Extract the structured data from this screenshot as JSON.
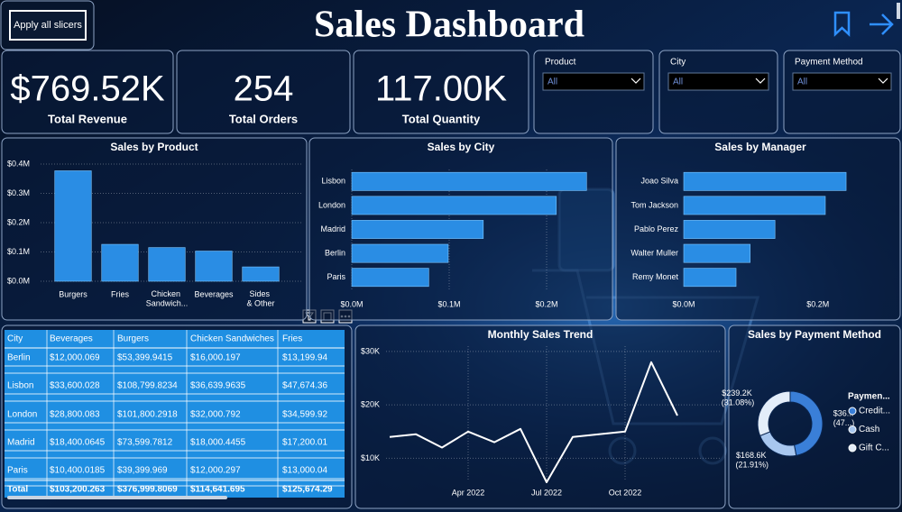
{
  "header": {
    "button": "Apply all slicers",
    "title": "Sales Dashboard"
  },
  "kpis": [
    {
      "value": "$769.52K",
      "label": "Total Revenue"
    },
    {
      "value": "254",
      "label": "Total Orders"
    },
    {
      "value": "117.00K",
      "label": "Total Quantity"
    }
  ],
  "slicers": [
    {
      "label": "Product",
      "selected": "All"
    },
    {
      "label": "City",
      "selected": "All"
    },
    {
      "label": "Payment Method",
      "selected": "All"
    }
  ],
  "chart_data": [
    {
      "type": "bar",
      "title": "Sales by Product",
      "categories": [
        "Burgers",
        "Fries",
        "Chicken Sandwich...",
        "Beverages",
        "Sides & Other"
      ],
      "values": [
        0.377,
        0.126,
        0.115,
        0.103,
        0.049
      ],
      "color": "#2a8de4",
      "ylim": [
        0,
        0.4
      ],
      "yticks": [
        {
          "value": 0,
          "label": "$0.0M"
        },
        {
          "value": 0.1,
          "label": "$0.1M"
        },
        {
          "value": 0.2,
          "label": "$0.2M"
        },
        {
          "value": 0.3,
          "label": "$0.3M"
        },
        {
          "value": 0.4,
          "label": "$0.4M"
        }
      ],
      "grid": true
    },
    {
      "type": "hbar",
      "title": "Sales by City",
      "categories": [
        "Lisbon",
        "London",
        "Madrid",
        "Berlin",
        "Paris"
      ],
      "values": [
        0.241,
        0.21,
        0.135,
        0.099,
        0.079
      ],
      "color": "#2a8de4",
      "xlim": [
        0,
        0.25
      ],
      "xticks": [
        {
          "value": 0,
          "label": "$0.0M"
        },
        {
          "value": 0.1,
          "label": "$0.1M"
        },
        {
          "value": 0.2,
          "label": "$0.2M"
        }
      ],
      "grid": true
    },
    {
      "type": "hbar",
      "title": "Sales by Manager",
      "categories": [
        "Joao Silva",
        "Tom Jackson",
        "Pablo Perez",
        "Walter Muller",
        "Remy Monet"
      ],
      "values": [
        0.242,
        0.211,
        0.136,
        0.099,
        0.078
      ],
      "color": "#2a8de4",
      "xlim": [
        0,
        0.25
      ],
      "xticks": [
        {
          "value": 0,
          "label": "$0.0M"
        },
        {
          "value": 0.2,
          "label": "$0.2M"
        }
      ],
      "grid": false
    },
    {
      "type": "line",
      "title": "Monthly Sales Trend",
      "x": [
        "Jan 2022",
        "Feb 2022",
        "Mar 2022",
        "Apr 2022",
        "May 2022",
        "Jun 2022",
        "Jul 2022",
        "Aug 2022",
        "Sep 2022",
        "Oct 2022",
        "Nov 2022",
        "Dec 2022"
      ],
      "values": [
        14,
        14.5,
        12,
        15,
        13,
        15.5,
        5.5,
        14,
        14.5,
        15,
        28,
        18
      ],
      "color": "#ffffff",
      "ylim": [
        5,
        31
      ],
      "yticks": [
        {
          "value": 10,
          "label": "$10K"
        },
        {
          "value": 20,
          "label": "$20K"
        },
        {
          "value": 30,
          "label": "$30K"
        }
      ],
      "xticks": [
        "Apr 2022",
        "Jul 2022",
        "Oct 2022"
      ],
      "grid": true
    },
    {
      "type": "donut",
      "title": "Sales by Payment Method",
      "legend_title": "Paymen...",
      "categories": [
        "Credit...",
        "Cash",
        "Gift C..."
      ],
      "values": [
        361.7,
        168.6,
        239.2
      ],
      "value_labels": [
        "$36... (47...)",
        "$168.6K (21.91%)",
        "$239.2K (31.08%)"
      ],
      "colors": [
        "#3a7fd8",
        "#a8c7ef",
        "#e3edf9"
      ]
    }
  ],
  "table": {
    "columns": [
      "City",
      "Beverages",
      "Burgers",
      "Chicken Sandwiches",
      "Fries"
    ],
    "rows": [
      [
        "Berlin",
        "$12,000.069",
        "$53,399.9415",
        "$16,000.197",
        "$13,199.94"
      ],
      [
        "Lisbon",
        "$33,600.028",
        "$108,799.8234",
        "$36,639.9635",
        "$47,674.36"
      ],
      [
        "London",
        "$28,800.083",
        "$101,800.2918",
        "$32,000.792",
        "$34,599.92"
      ],
      [
        "Madrid",
        "$18,400.0645",
        "$73,599.7812",
        "$18,000.4455",
        "$17,200.01"
      ],
      [
        "Paris",
        "$10,400.0185",
        "$39,399.969",
        "$12,000.297",
        "$13,000.04"
      ],
      [
        "Total",
        "$103,200.263",
        "$376,999.8069",
        "$114,641.695",
        "$125,674.29"
      ]
    ]
  }
}
